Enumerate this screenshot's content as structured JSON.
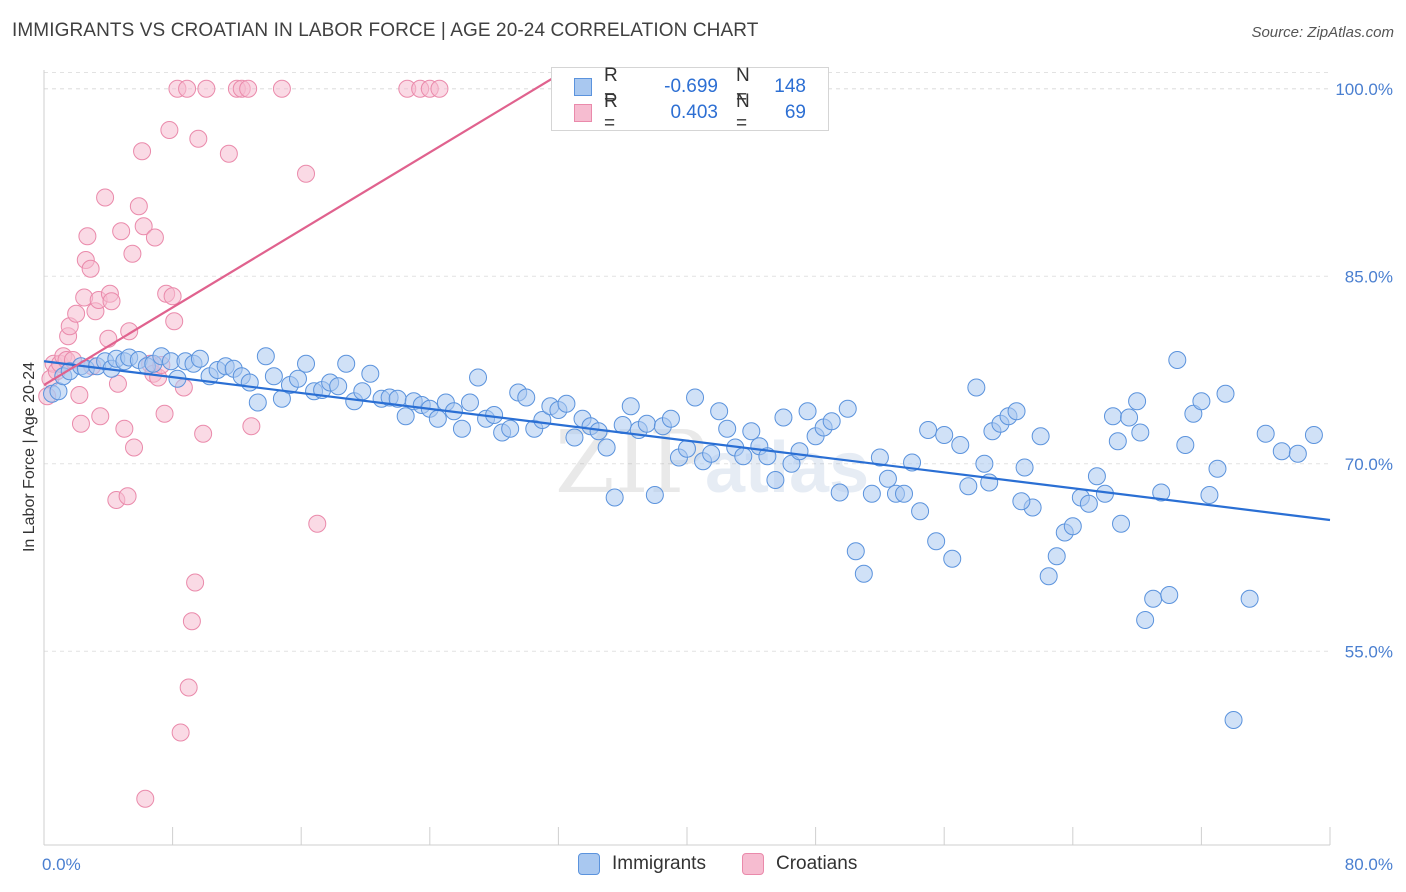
{
  "title": "IMMIGRANTS VS CROATIAN IN LABOR FORCE | AGE 20-24 CORRELATION CHART",
  "source": "Source: ZipAtlas.com",
  "legend": {
    "rows": [
      {
        "r_label": "R =",
        "r_value": "-0.699",
        "n_label": "N =",
        "n_value": "148"
      },
      {
        "r_label": "R =",
        "r_value": "0.403",
        "n_label": "N =",
        "n_value": "69"
      }
    ]
  },
  "colors": {
    "immigrants_fill": "#a9c8f0",
    "immigrants_stroke": "#5b93dd",
    "immigrants_line": "#2a6fd4",
    "croatians_fill": "#f6bcd0",
    "croatians_stroke": "#ea8aab",
    "croatians_line": "#e0628e",
    "grid": "#e2e2e2",
    "tick_text": "#4a7fd0"
  },
  "chart_data": {
    "type": "scatter",
    "title": "IMMIGRANTS VS CROATIAN IN LABOR FORCE | AGE 20-24 CORRELATION CHART",
    "xlabel": "",
    "ylabel": "In Labor Force | Age 20-24",
    "xlim": [
      0,
      80
    ],
    "ylim": [
      39.5,
      101.5
    ],
    "x_tick_labels": [
      "0.0%",
      "80.0%"
    ],
    "y_ticks": [
      55,
      70,
      85,
      100
    ],
    "y_tick_labels": [
      "55.0%",
      "70.0%",
      "85.0%",
      "100.0%"
    ],
    "grid": "horizontal dashed",
    "legend_position": "top-center",
    "watermark": "ZIPatlas",
    "series": [
      {
        "name": "Immigrants",
        "r": -0.699,
        "n": 148,
        "trend": {
          "x": [
            0,
            80
          ],
          "y": [
            78.2,
            65.5
          ]
        },
        "points": [
          [
            0.5,
            75.6
          ],
          [
            0.9,
            75.8
          ],
          [
            1.2,
            77.0
          ],
          [
            1.6,
            77.4
          ],
          [
            2.3,
            77.8
          ],
          [
            2.6,
            77.6
          ],
          [
            3.3,
            77.8
          ],
          [
            3.8,
            78.2
          ],
          [
            4.2,
            77.6
          ],
          [
            4.5,
            78.4
          ],
          [
            5.0,
            78.2
          ],
          [
            5.3,
            78.5
          ],
          [
            5.9,
            78.3
          ],
          [
            6.4,
            77.8
          ],
          [
            6.8,
            78.0
          ],
          [
            7.3,
            78.6
          ],
          [
            7.9,
            78.2
          ],
          [
            8.3,
            76.8
          ],
          [
            8.8,
            78.2
          ],
          [
            9.3,
            78.0
          ],
          [
            9.7,
            78.4
          ],
          [
            10.3,
            77.0
          ],
          [
            10.8,
            77.5
          ],
          [
            11.3,
            77.8
          ],
          [
            11.8,
            77.6
          ],
          [
            12.3,
            77.0
          ],
          [
            12.8,
            76.5
          ],
          [
            13.3,
            74.9
          ],
          [
            13.8,
            78.6
          ],
          [
            14.3,
            77.0
          ],
          [
            14.8,
            75.2
          ],
          [
            15.3,
            76.3
          ],
          [
            15.8,
            76.8
          ],
          [
            16.3,
            78.0
          ],
          [
            16.8,
            75.8
          ],
          [
            17.3,
            75.9
          ],
          [
            17.8,
            76.5
          ],
          [
            18.3,
            76.2
          ],
          [
            18.8,
            78.0
          ],
          [
            19.3,
            75.0
          ],
          [
            19.8,
            75.8
          ],
          [
            20.3,
            77.2
          ],
          [
            21.0,
            75.2
          ],
          [
            21.5,
            75.3
          ],
          [
            22.0,
            75.2
          ],
          [
            22.5,
            73.8
          ],
          [
            23.0,
            75.0
          ],
          [
            23.5,
            74.7
          ],
          [
            24.0,
            74.4
          ],
          [
            24.5,
            73.6
          ],
          [
            25.0,
            74.9
          ],
          [
            25.5,
            74.2
          ],
          [
            26.0,
            72.8
          ],
          [
            26.5,
            74.9
          ],
          [
            27.0,
            76.9
          ],
          [
            27.5,
            73.6
          ],
          [
            28.0,
            73.9
          ],
          [
            28.5,
            72.5
          ],
          [
            29.0,
            72.8
          ],
          [
            29.5,
            75.7
          ],
          [
            30.0,
            75.3
          ],
          [
            30.5,
            72.8
          ],
          [
            31.0,
            73.5
          ],
          [
            31.5,
            74.6
          ],
          [
            32.0,
            74.3
          ],
          [
            32.5,
            74.8
          ],
          [
            33.0,
            72.1
          ],
          [
            33.5,
            73.6
          ],
          [
            34.0,
            73.0
          ],
          [
            34.5,
            72.6
          ],
          [
            35.0,
            71.3
          ],
          [
            35.5,
            67.3
          ],
          [
            36.0,
            73.1
          ],
          [
            36.5,
            74.6
          ],
          [
            37.0,
            72.7
          ],
          [
            37.5,
            73.2
          ],
          [
            38.0,
            67.5
          ],
          [
            38.5,
            73.0
          ],
          [
            39.0,
            73.6
          ],
          [
            39.5,
            70.5
          ],
          [
            40.0,
            71.2
          ],
          [
            40.5,
            75.3
          ],
          [
            41.0,
            70.2
          ],
          [
            41.5,
            70.8
          ],
          [
            42.0,
            74.2
          ],
          [
            42.5,
            72.8
          ],
          [
            43.0,
            71.3
          ],
          [
            43.5,
            70.6
          ],
          [
            44.0,
            72.6
          ],
          [
            44.5,
            71.4
          ],
          [
            45.0,
            70.6
          ],
          [
            45.5,
            68.7
          ],
          [
            46.0,
            73.7
          ],
          [
            46.5,
            70.0
          ],
          [
            47.0,
            71.0
          ],
          [
            47.5,
            74.2
          ],
          [
            48.0,
            72.2
          ],
          [
            48.5,
            72.9
          ],
          [
            49.0,
            73.4
          ],
          [
            49.5,
            67.7
          ],
          [
            50.0,
            74.4
          ],
          [
            50.5,
            63.0
          ],
          [
            51.0,
            61.2
          ],
          [
            51.5,
            67.6
          ],
          [
            52.0,
            70.5
          ],
          [
            52.5,
            68.8
          ],
          [
            53.0,
            67.6
          ],
          [
            53.5,
            67.6
          ],
          [
            54.0,
            70.1
          ],
          [
            54.5,
            66.2
          ],
          [
            55.0,
            72.7
          ],
          [
            55.5,
            63.8
          ],
          [
            56.0,
            72.3
          ],
          [
            56.5,
            62.4
          ],
          [
            57.0,
            71.5
          ],
          [
            57.5,
            68.2
          ],
          [
            58.0,
            76.1
          ],
          [
            58.5,
            70.0
          ],
          [
            59.0,
            72.6
          ],
          [
            59.5,
            73.2
          ],
          [
            60.0,
            73.8
          ],
          [
            60.5,
            74.2
          ],
          [
            61.0,
            69.7
          ],
          [
            61.5,
            66.5
          ],
          [
            62.0,
            72.2
          ],
          [
            62.5,
            61.0
          ],
          [
            63.0,
            62.6
          ],
          [
            63.5,
            64.5
          ],
          [
            64.0,
            65.0
          ],
          [
            64.5,
            67.3
          ],
          [
            65.0,
            66.8
          ],
          [
            65.5,
            69.0
          ],
          [
            66.0,
            67.6
          ],
          [
            66.5,
            73.8
          ],
          [
            67.0,
            65.2
          ],
          [
            67.5,
            73.7
          ],
          [
            68.0,
            75.0
          ],
          [
            68.5,
            57.5
          ],
          [
            69.0,
            59.2
          ],
          [
            69.5,
            67.7
          ],
          [
            70.0,
            59.5
          ],
          [
            70.5,
            78.3
          ],
          [
            71.0,
            71.5
          ],
          [
            71.5,
            74.0
          ],
          [
            72.0,
            75.0
          ],
          [
            72.5,
            67.5
          ],
          [
            73.0,
            69.6
          ],
          [
            73.5,
            75.6
          ],
          [
            74.0,
            49.5
          ],
          [
            75.0,
            59.2
          ],
          [
            76.0,
            72.4
          ],
          [
            77.0,
            71.0
          ],
          [
            78.0,
            70.8
          ],
          [
            79.0,
            72.3
          ],
          [
            68.2,
            72.5
          ],
          [
            66.8,
            71.8
          ],
          [
            60.8,
            67.0
          ],
          [
            58.8,
            68.5
          ]
        ]
      },
      {
        "name": "Croatians",
        "r": 0.403,
        "n": 69,
        "trend": {
          "x": [
            0,
            32.5
          ],
          "y": [
            76.3,
            101.5
          ]
        },
        "points": [
          [
            0.2,
            75.4
          ],
          [
            0.4,
            76.8
          ],
          [
            0.6,
            78.0
          ],
          [
            0.8,
            77.4
          ],
          [
            1.0,
            78.0
          ],
          [
            1.2,
            78.6
          ],
          [
            1.4,
            78.3
          ],
          [
            1.5,
            80.2
          ],
          [
            1.6,
            81.0
          ],
          [
            1.8,
            78.3
          ],
          [
            2.0,
            82.0
          ],
          [
            2.2,
            75.5
          ],
          [
            2.3,
            73.2
          ],
          [
            2.5,
            83.3
          ],
          [
            2.6,
            86.3
          ],
          [
            2.7,
            88.2
          ],
          [
            2.9,
            85.6
          ],
          [
            3.0,
            77.8
          ],
          [
            3.2,
            82.2
          ],
          [
            3.4,
            83.1
          ],
          [
            3.5,
            73.8
          ],
          [
            3.8,
            91.3
          ],
          [
            4.0,
            80.0
          ],
          [
            4.1,
            83.6
          ],
          [
            4.2,
            83.0
          ],
          [
            4.5,
            67.1
          ],
          [
            4.6,
            76.4
          ],
          [
            4.8,
            88.6
          ],
          [
            5.0,
            72.8
          ],
          [
            5.2,
            67.4
          ],
          [
            5.3,
            80.6
          ],
          [
            5.5,
            86.8
          ],
          [
            5.6,
            71.3
          ],
          [
            5.9,
            90.6
          ],
          [
            6.1,
            95.0
          ],
          [
            6.2,
            89.0
          ],
          [
            6.3,
            43.2
          ],
          [
            6.6,
            78.0
          ],
          [
            6.8,
            77.2
          ],
          [
            6.9,
            88.1
          ],
          [
            7.1,
            76.9
          ],
          [
            7.3,
            77.9
          ],
          [
            7.5,
            74.0
          ],
          [
            7.6,
            83.6
          ],
          [
            7.8,
            96.7
          ],
          [
            8.0,
            83.4
          ],
          [
            8.1,
            81.4
          ],
          [
            8.3,
            100.0
          ],
          [
            8.5,
            48.5
          ],
          [
            8.7,
            76.1
          ],
          [
            8.9,
            100.0
          ],
          [
            9.0,
            52.1
          ],
          [
            9.2,
            57.4
          ],
          [
            9.4,
            60.5
          ],
          [
            9.6,
            96.0
          ],
          [
            9.9,
            72.4
          ],
          [
            10.1,
            100.0
          ],
          [
            11.5,
            94.8
          ],
          [
            12.0,
            100.0
          ],
          [
            12.3,
            100.0
          ],
          [
            12.7,
            100.0
          ],
          [
            12.9,
            73.0
          ],
          [
            14.8,
            100.0
          ],
          [
            16.3,
            93.2
          ],
          [
            17.0,
            65.2
          ],
          [
            22.6,
            100.0
          ],
          [
            23.4,
            100.0
          ],
          [
            24.0,
            100.0
          ],
          [
            24.6,
            100.0
          ]
        ]
      }
    ]
  },
  "bottom_legend": [
    "Immigrants",
    "Croatians"
  ],
  "watermark": "ZIPatlas"
}
